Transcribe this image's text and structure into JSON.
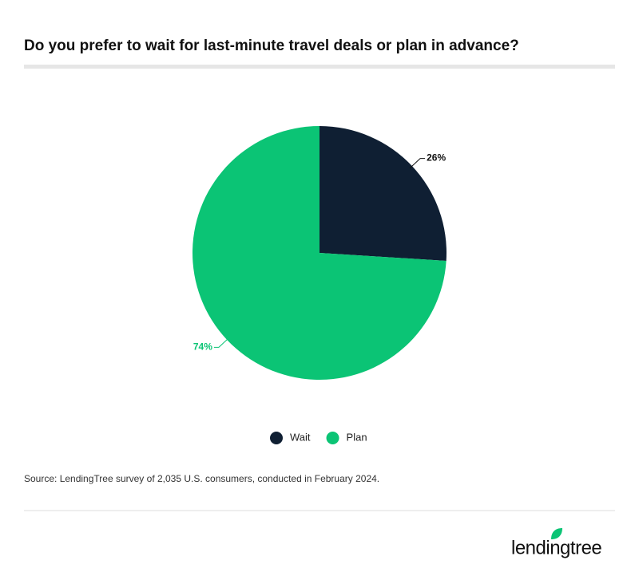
{
  "chart_data": {
    "type": "pie",
    "title": "Do you prefer to wait for last-minute travel deals or plan in advance?",
    "categories": [
      "Wait",
      "Plan"
    ],
    "values": [
      26,
      74
    ],
    "value_labels": [
      "26%",
      "74%"
    ],
    "colors": [
      "#0f1f33",
      "#0bc475"
    ],
    "source": "Source: LendingTree survey of 2,035 U.S. consumers, conducted in February 2024.",
    "brand": "lendingtree"
  }
}
